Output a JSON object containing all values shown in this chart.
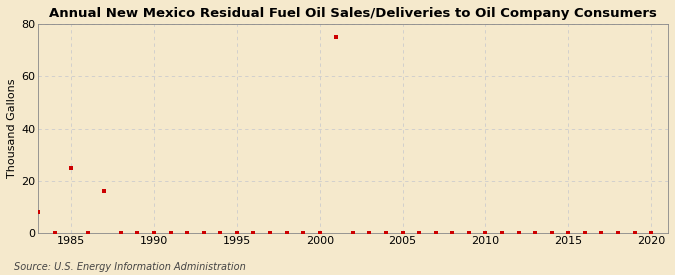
{
  "title": "Annual New Mexico Residual Fuel Oil Sales/Deliveries to Oil Company Consumers",
  "ylabel": "Thousand Gallons",
  "source": "Source: U.S. Energy Information Administration",
  "xlim": [
    1983,
    2021
  ],
  "ylim": [
    0,
    80
  ],
  "yticks": [
    0,
    20,
    40,
    60,
    80
  ],
  "xticks": [
    1985,
    1990,
    1995,
    2000,
    2005,
    2010,
    2015,
    2020
  ],
  "background_color": "#f5e9cc",
  "plot_bg_color": "#fdf5e0",
  "marker_color": "#cc0000",
  "grid_color": "#cccccc",
  "data_years": [
    1983,
    1984,
    1985,
    1986,
    1987,
    1988,
    1989,
    1990,
    1991,
    1992,
    1993,
    1994,
    1995,
    1996,
    1997,
    1998,
    1999,
    2000,
    2001,
    2002,
    2003,
    2004,
    2005,
    2006,
    2007,
    2008,
    2009,
    2010,
    2011,
    2012,
    2013,
    2014,
    2015,
    2016,
    2017,
    2018,
    2019,
    2020
  ],
  "data_values": [
    8,
    0,
    25,
    0,
    16,
    0,
    0,
    0,
    0,
    0,
    0,
    0,
    0,
    0,
    0,
    0,
    0,
    0,
    75,
    0,
    0,
    0,
    0,
    0,
    0,
    0,
    0,
    0,
    0,
    0,
    0,
    0,
    0,
    0,
    0,
    0,
    0,
    0
  ],
  "title_fontsize": 9.5,
  "tick_fontsize": 8,
  "ylabel_fontsize": 8,
  "source_fontsize": 7
}
